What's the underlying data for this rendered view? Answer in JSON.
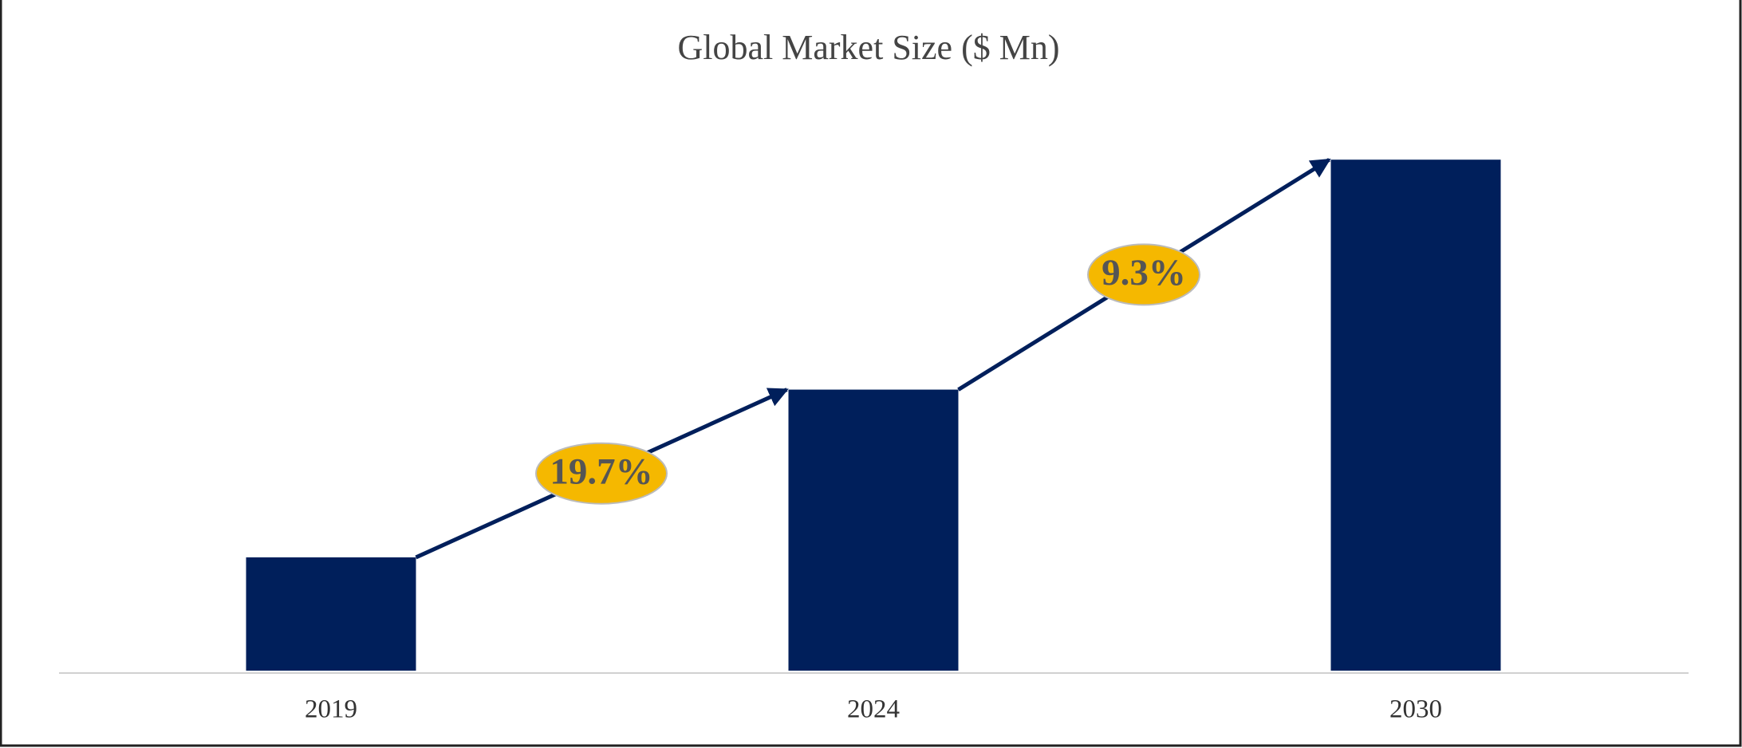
{
  "chart_data": {
    "type": "bar",
    "title": "Global Market Size ($ Mn)",
    "categories": [
      "2019",
      "2024",
      "2030"
    ],
    "values": [
      102,
      253,
      460
    ],
    "color": "#001f5b",
    "ylim": [
      0,
      500
    ],
    "annotations": [
      "19.7%",
      "9.3%"
    ]
  }
}
